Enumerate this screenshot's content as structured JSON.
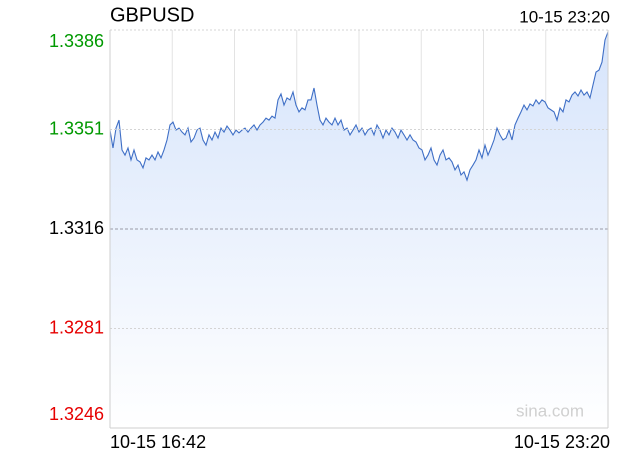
{
  "chart_data": {
    "type": "line",
    "title": "GBPUSD",
    "timestamp": "10-15 23:20",
    "watermark": "sina.com",
    "ylim": [
      1.3246,
      1.3386
    ],
    "yticks": [
      1.3386,
      1.3351,
      1.3316,
      1.3281,
      1.3246
    ],
    "baseline": 1.3316,
    "up_color": "#009900",
    "down_color": "#e60000",
    "grid": true,
    "categories": [
      "10-15 16:42",
      null,
      null,
      null,
      null,
      null,
      null,
      null,
      null,
      null,
      null,
      null,
      null,
      null,
      null,
      null,
      null,
      null,
      null,
      null,
      null,
      null,
      null,
      null,
      null,
      null,
      null,
      null,
      null,
      null,
      null,
      null,
      null,
      null,
      null,
      null,
      null,
      null,
      null,
      null,
      null,
      null,
      null,
      null,
      null,
      null,
      null,
      null,
      null,
      null,
      null,
      null,
      null,
      null,
      null,
      null,
      null,
      null,
      null,
      null,
      null,
      null,
      null,
      null,
      null,
      null,
      null,
      null,
      null,
      null,
      null,
      null,
      null,
      null,
      null,
      null,
      null,
      null,
      null,
      null,
      null,
      null,
      null,
      null,
      null,
      null,
      null,
      null,
      null,
      null,
      null,
      null,
      null,
      null,
      null,
      null,
      null,
      null,
      null,
      null,
      null,
      null,
      null,
      null,
      null,
      null,
      null,
      null,
      null,
      null,
      null,
      null,
      null,
      null,
      null,
      null,
      null,
      null,
      null,
      null,
      null,
      null,
      null,
      null,
      null,
      null,
      null,
      null,
      null,
      null,
      null,
      null,
      null,
      null,
      null,
      null,
      null,
      null,
      null,
      null,
      null,
      null,
      null,
      null,
      null,
      null,
      null,
      null,
      null,
      null,
      null,
      null,
      null,
      null,
      null,
      null,
      null,
      null,
      null,
      null,
      null,
      null,
      null,
      null,
      null,
      null,
      "10-15 23:20"
    ],
    "series": [
      {
        "name": "GBPUSD",
        "color": "#3f6fc6",
        "fill": "#d6e4fb",
        "values": [
          1.33508,
          1.33445,
          1.33515,
          1.33543,
          1.33438,
          1.3342,
          1.33445,
          1.33403,
          1.33438,
          1.33403,
          1.33396,
          1.33375,
          1.3341,
          1.33403,
          1.3342,
          1.33403,
          1.33431,
          1.3341,
          1.33438,
          1.33473,
          1.33526,
          1.33536,
          1.33508,
          1.33515,
          1.33501,
          1.33491,
          1.33515,
          1.33466,
          1.3348,
          1.33508,
          1.33515,
          1.33473,
          1.33455,
          1.33491,
          1.33473,
          1.33501,
          1.3348,
          1.33515,
          1.33501,
          1.33522,
          1.33508,
          1.33491,
          1.33508,
          1.33498,
          1.33508,
          1.33515,
          1.33501,
          1.33515,
          1.33526,
          1.33508,
          1.33526,
          1.33536,
          1.3355,
          1.33543,
          1.33557,
          1.3355,
          1.33614,
          1.33635,
          1.33596,
          1.33621,
          1.33614,
          1.33642,
          1.33596,
          1.33572,
          1.33586,
          1.33579,
          1.33614,
          1.33614,
          1.33656,
          1.33596,
          1.33543,
          1.33526,
          1.3355,
          1.33536,
          1.33526,
          1.3355,
          1.33526,
          1.33543,
          1.33508,
          1.33515,
          1.33491,
          1.33508,
          1.33526,
          1.33501,
          1.33515,
          1.33491,
          1.33508,
          1.33515,
          1.33491,
          1.33526,
          1.33508,
          1.3348,
          1.33508,
          1.33491,
          1.33515,
          1.33501,
          1.3348,
          1.33508,
          1.33491,
          1.33473,
          1.33491,
          1.33473,
          1.33466,
          1.33445,
          1.33438,
          1.33403,
          1.3342,
          1.33445,
          1.33403,
          1.33385,
          1.3342,
          1.33438,
          1.33403,
          1.3341,
          1.33396,
          1.33368,
          1.33385,
          1.3335,
          1.33361,
          1.33332,
          1.33368,
          1.33385,
          1.33403,
          1.33438,
          1.3341,
          1.33455,
          1.3342,
          1.33445,
          1.33473,
          1.33515,
          1.33491,
          1.33473,
          1.3348,
          1.33508,
          1.33473,
          1.33526,
          1.3355,
          1.33572,
          1.33596,
          1.33579,
          1.336,
          1.33593,
          1.33614,
          1.336,
          1.33614,
          1.33607,
          1.33586,
          1.33579,
          1.33572,
          1.33543,
          1.33586,
          1.33572,
          1.33614,
          1.33607,
          1.33631,
          1.33642,
          1.33628,
          1.33649,
          1.33631,
          1.33642,
          1.33621,
          1.33667,
          1.33712,
          1.33719,
          1.33747,
          1.33825,
          1.33853
        ]
      }
    ]
  }
}
